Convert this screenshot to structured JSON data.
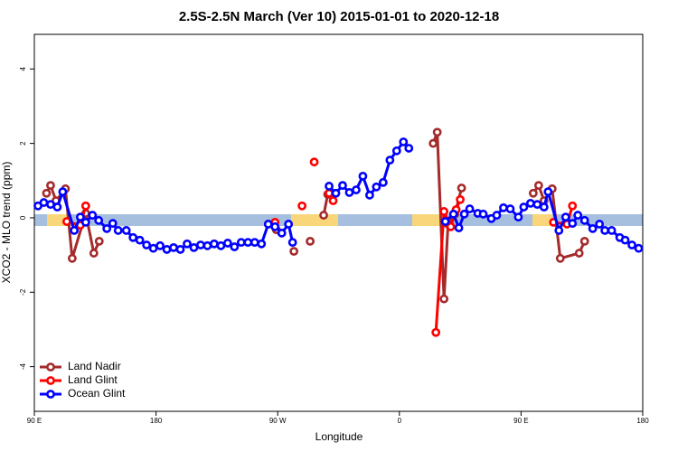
{
  "chart_data": {
    "type": "line",
    "title": "2.5S-2.5N March (Ver 10)   2015-01-01 to 2020-12-18",
    "x_label": "Longitude",
    "y_label": "XCO2 - MLO trend (ppm)",
    "xlim": [
      90,
      540
    ],
    "ylim": [
      -5.2,
      4.93
    ],
    "xticks": [
      {
        "value": 90,
        "label": "90 E"
      },
      180,
      {
        "value": 270,
        "label": "90 W"
      },
      {
        "value": 360,
        "label": "0"
      },
      {
        "value": 450,
        "label": "90 E"
      },
      {
        "value": 540,
        "label": "180"
      }
    ],
    "yticks": [
      -4,
      -2,
      0,
      2,
      4
    ],
    "legend": "bottom-left",
    "series": [
      {
        "name": "Land Nadir",
        "color": "#a52a2a",
        "x": [
          99,
          102,
          106,
          113,
          118,
          128,
          134,
          138,
          null,
          269,
          null,
          282,
          null,
          294,
          null,
          304,
          307,
          null,
          385,
          388,
          393,
          396,
          401,
          406,
          null,
          459,
          463,
          467,
          473,
          479,
          493,
          497
        ],
        "values": [
          0.66,
          0.87,
          0.46,
          0.78,
          -1.09,
          0.12,
          -0.95,
          -0.63,
          null,
          -0.32,
          null,
          -0.9,
          null,
          -0.63,
          null,
          0.07,
          0.63,
          null,
          2.0,
          2.3,
          -2.18,
          -0.17,
          0.1,
          0.8,
          null,
          0.66,
          0.87,
          0.46,
          0.78,
          -1.09,
          -0.95,
          -0.63
        ]
      },
      {
        "name": "Land Glint",
        "color": "#ff0000",
        "x": [
          114,
          124,
          128,
          null,
          268,
          null,
          288,
          null,
          297,
          null,
          308,
          311,
          null,
          387,
          393,
          398,
          402,
          405,
          null,
          474,
          484,
          488
        ],
        "values": [
          -0.1,
          -0.2,
          0.32,
          null,
          -0.12,
          null,
          0.32,
          null,
          1.5,
          null,
          0.66,
          0.46,
          null,
          -3.08,
          0.17,
          -0.24,
          0.22,
          0.49,
          null,
          -0.12,
          -0.17,
          0.32
        ]
      },
      {
        "name": "Ocean Glint",
        "color": "#0000ff",
        "x": [
          92.7,
          97,
          102,
          107,
          111,
          119.5,
          124,
          128,
          133,
          137.6,
          143.6,
          148,
          152,
          158,
          163,
          168,
          173,
          178,
          183,
          188,
          193,
          198,
          203,
          208,
          213,
          218,
          223,
          228,
          233,
          238,
          243,
          248,
          253,
          258,
          263,
          268,
          273,
          278,
          281,
          null,
          308,
          313,
          318,
          323,
          328,
          333,
          338,
          343,
          348,
          353,
          358,
          363,
          367,
          null,
          394,
          400,
          404,
          408,
          412,
          418,
          422,
          428,
          432,
          437,
          442,
          448,
          452,
          457,
          462,
          467,
          470,
          478,
          483,
          488,
          492,
          497,
          503,
          508,
          512,
          517,
          523,
          527,
          532,
          537
        ],
        "values": [
          0.32,
          0.41,
          0.36,
          0.29,
          0.7,
          -0.34,
          0.02,
          -0.12,
          0.07,
          -0.07,
          -0.29,
          -0.15,
          -0.34,
          -0.34,
          -0.53,
          -0.6,
          -0.73,
          -0.82,
          -0.75,
          -0.85,
          -0.8,
          -0.85,
          -0.7,
          -0.8,
          -0.73,
          -0.75,
          -0.7,
          -0.75,
          -0.68,
          -0.78,
          -0.66,
          -0.66,
          -0.66,
          -0.7,
          -0.17,
          -0.24,
          -0.41,
          -0.17,
          -0.66,
          null,
          0.85,
          0.66,
          0.87,
          0.68,
          0.75,
          1.12,
          0.61,
          0.83,
          0.95,
          1.55,
          1.8,
          2.04,
          1.87,
          null,
          -0.1,
          0.1,
          -0.27,
          0.1,
          0.24,
          0.12,
          0.1,
          -0.02,
          0.07,
          0.27,
          0.24,
          0.02,
          0.29,
          0.39,
          0.36,
          0.29,
          0.7,
          -0.34,
          0.02,
          -0.15,
          0.07,
          -0.07,
          -0.29,
          -0.17,
          -0.34,
          -0.34,
          -0.53,
          -0.6,
          -0.73,
          -0.82
        ]
      }
    ]
  }
}
